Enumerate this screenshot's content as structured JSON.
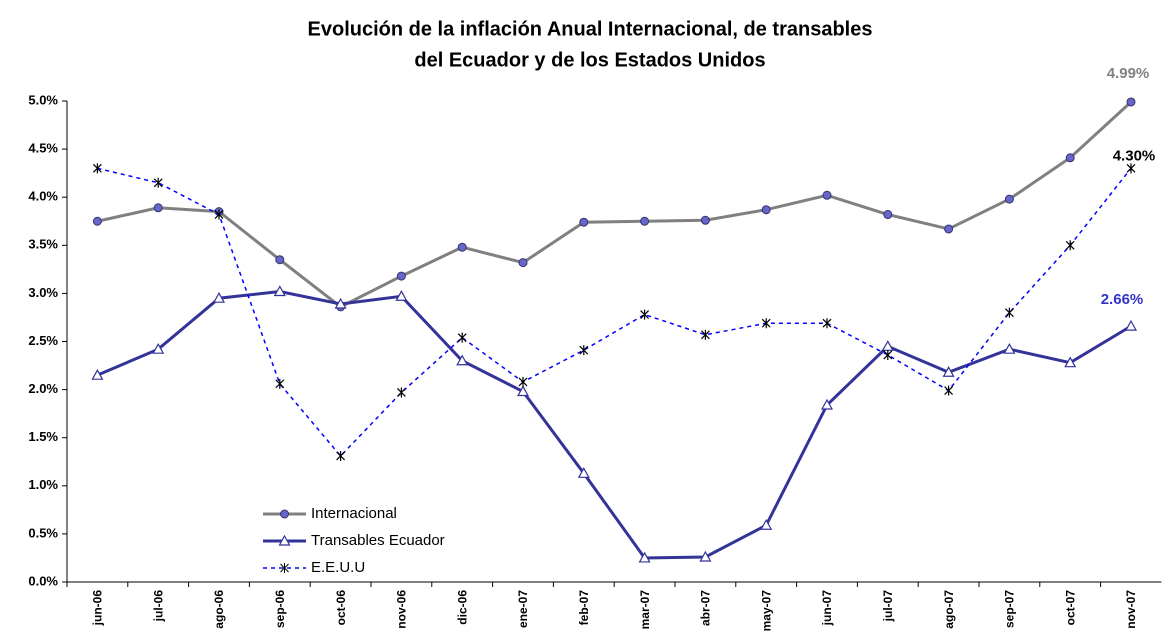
{
  "chart_data": {
    "type": "line",
    "title_lines": [
      "Evolución de la inflación Anual Internacional, de transables",
      "del Ecuador y de los Estados Unidos"
    ],
    "categories": [
      "jun-06",
      "jul-06",
      "ago-06",
      "sep-06",
      "oct-06",
      "nov-06",
      "dic-06",
      "ene-07",
      "feb-07",
      "mar-07",
      "abr-07",
      "may-07",
      "jun-07",
      "jul-07",
      "ago-07",
      "sep-07",
      "oct-07",
      "nov-07"
    ],
    "ylim": [
      0,
      5
    ],
    "yticks": [
      {
        "value": 0,
        "label": "0.0%"
      },
      {
        "value": 0.5,
        "label": "0.5%"
      },
      {
        "value": 1,
        "label": "1.0%"
      },
      {
        "value": 1.5,
        "label": "1.5%"
      },
      {
        "value": 2,
        "label": "2.0%"
      },
      {
        "value": 2.5,
        "label": "2.5%"
      },
      {
        "value": 3,
        "label": "3.0%"
      },
      {
        "value": 3.5,
        "label": "3.5%"
      },
      {
        "value": 4,
        "label": "4.0%"
      },
      {
        "value": 4.5,
        "label": "4.5%"
      },
      {
        "value": 5,
        "label": "5.0%"
      }
    ],
    "grid": false,
    "legend": "lower-left",
    "series": [
      {
        "name": "Internacional",
        "color": "#808080",
        "marker": "circle",
        "marker_color": "#6666cc",
        "style": "solid",
        "label_color": "#808080",
        "values": [
          3.75,
          3.89,
          3.85,
          3.35,
          2.86,
          3.18,
          3.48,
          3.32,
          3.74,
          3.75,
          3.76,
          3.87,
          4.02,
          3.82,
          3.67,
          3.98,
          4.41,
          4.99
        ],
        "value_labels": [
          null,
          null,
          null,
          null,
          null,
          null,
          null,
          null,
          null,
          null,
          null,
          null,
          null,
          null,
          null,
          null,
          null,
          "4.99%"
        ]
      },
      {
        "name": "Transables Ecuador",
        "color": "#333399",
        "marker": "triangle",
        "marker_color": "#ffffff",
        "style": "solid",
        "label_color": "#3333cc",
        "values": [
          2.15,
          2.42,
          2.95,
          3.02,
          2.89,
          2.97,
          2.3,
          1.98,
          1.13,
          0.25,
          0.26,
          0.59,
          1.84,
          2.45,
          2.18,
          2.42,
          2.28,
          2.66
        ],
        "value_labels": [
          null,
          null,
          null,
          null,
          null,
          null,
          null,
          null,
          null,
          null,
          null,
          null,
          null,
          null,
          null,
          null,
          null,
          "2.66%"
        ]
      },
      {
        "name": "E.E.U.U",
        "color": "#0000ff",
        "marker": "asterisk",
        "marker_color": "#000000",
        "style": "dashed",
        "label_color": "#000000",
        "values": [
          4.3,
          4.15,
          3.82,
          2.06,
          1.31,
          1.97,
          2.54,
          2.08,
          2.41,
          2.78,
          2.57,
          2.69,
          2.69,
          2.36,
          1.99,
          2.8,
          3.5,
          4.3
        ],
        "value_labels": [
          null,
          null,
          null,
          null,
          null,
          null,
          null,
          null,
          null,
          null,
          null,
          null,
          null,
          null,
          null,
          null,
          null,
          "4.30%"
        ]
      }
    ]
  }
}
